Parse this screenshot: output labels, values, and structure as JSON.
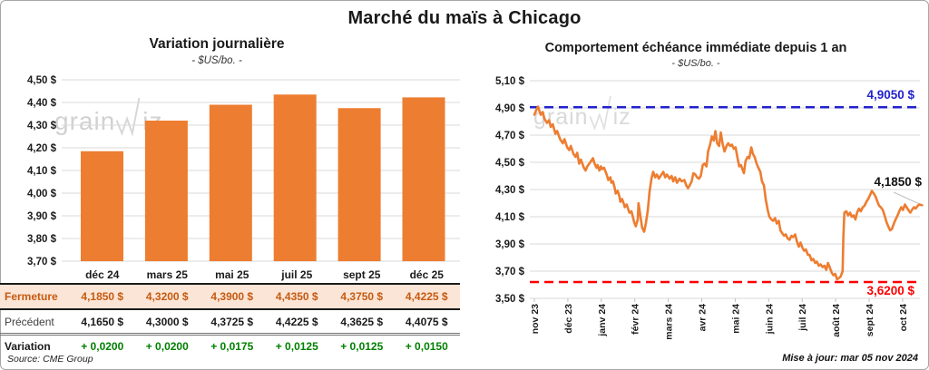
{
  "frame": {
    "title": "Marché du maïs à Chicago"
  },
  "watermark": {
    "part1": "grain",
    "part2": "iz"
  },
  "footer": {
    "source": "Source: CME Group",
    "updated": "Mise à jour: mar 05 nov 2024"
  },
  "colors": {
    "accent_orange": "#ED7D31",
    "table_highlight_bg": "#FBE5D6",
    "table_highlight_text": "#C55A11",
    "variation_green": "#008000",
    "ref_blue": "#2222CC",
    "ref_red": "#FF0000",
    "gridline": "#D9D9D9"
  },
  "table": {
    "columns": [
      "déc 24",
      "mars 25",
      "mai 25",
      "juil 25",
      "sept 25",
      "déc 25"
    ],
    "rows": [
      {
        "label": "Fermeture",
        "values": [
          "4,1850 $",
          "4,3200 $",
          "4,3900 $",
          "4,4350 $",
          "4,3750 $",
          "4,4225 $"
        ]
      },
      {
        "label": "Précédent",
        "values": [
          "4,1650 $",
          "4,3000 $",
          "4,3725 $",
          "4,4225 $",
          "4,3625 $",
          "4,4075 $"
        ]
      },
      {
        "label": "Variation",
        "values": [
          "+ 0,0200",
          "+ 0,0200",
          "+ 0,0175",
          "+ 0,0125",
          "+ 0,0125",
          "+ 0,0150"
        ]
      }
    ]
  },
  "chart_data": [
    {
      "type": "bar",
      "title": "Variation journalière",
      "subtitle": "- $US/bo. -",
      "categories": [
        "déc 24",
        "mars 25",
        "mai 25",
        "juil 25",
        "sept 25",
        "déc 25"
      ],
      "values": [
        4.185,
        4.32,
        4.39,
        4.435,
        4.375,
        4.4225
      ],
      "ylim": [
        3.7,
        4.5
      ],
      "ytick_step": 0.1,
      "bar_color": "#ED7D31",
      "grid": true
    },
    {
      "type": "line",
      "title": "Comportement échéance immédiate depuis 1 an",
      "subtitle": "- $US/bo. -",
      "x_ticks": [
        "nov 23",
        "déc 23",
        "janv 24",
        "févr 24",
        "mars 24",
        "avr 24",
        "mai 24",
        "juin 24",
        "juil 24",
        "août 24",
        "sept 24",
        "oct 24"
      ],
      "ylim": [
        3.5,
        5.1
      ],
      "ytick_step": 0.2,
      "line_color": "#ED7D31",
      "grid": true,
      "ref_lines": [
        {
          "value": 4.905,
          "label": "4,9050 $",
          "color": "#2222CC"
        },
        {
          "value": 3.62,
          "label": "3,6200 $",
          "color": "#FF0000"
        }
      ],
      "last_label": "4,1850 $",
      "series": [
        [
          0,
          4.85
        ],
        [
          0.05,
          4.88
        ],
        [
          0.11,
          4.91
        ],
        [
          0.19,
          4.85
        ],
        [
          0.25,
          4.87
        ],
        [
          0.3,
          4.82
        ],
        [
          0.38,
          4.79
        ],
        [
          0.44,
          4.81
        ],
        [
          0.49,
          4.76
        ],
        [
          0.55,
          4.78
        ],
        [
          0.63,
          4.71
        ],
        [
          0.68,
          4.73
        ],
        [
          0.77,
          4.67
        ],
        [
          0.85,
          4.64
        ],
        [
          0.9,
          4.67
        ],
        [
          0.98,
          4.61
        ],
        [
          1.04,
          4.59
        ],
        [
          1.09,
          4.62
        ],
        [
          1.17,
          4.56
        ],
        [
          1.23,
          4.54
        ],
        [
          1.28,
          4.57
        ],
        [
          1.34,
          4.49
        ],
        [
          1.39,
          4.52
        ],
        [
          1.48,
          4.46
        ],
        [
          1.53,
          4.44
        ],
        [
          1.58,
          4.47
        ],
        [
          1.67,
          4.5
        ],
        [
          1.75,
          4.53
        ],
        [
          1.8,
          4.49
        ],
        [
          1.86,
          4.46
        ],
        [
          1.89,
          4.48
        ],
        [
          1.94,
          4.44
        ],
        [
          1.99,
          4.47
        ],
        [
          2.02,
          4.45
        ],
        [
          2.08,
          4.46
        ],
        [
          2.13,
          4.43
        ],
        [
          2.16,
          4.41
        ],
        [
          2.21,
          4.37
        ],
        [
          2.27,
          4.39
        ],
        [
          2.3,
          4.35
        ],
        [
          2.35,
          4.36
        ],
        [
          2.4,
          4.31
        ],
        [
          2.43,
          4.27
        ],
        [
          2.49,
          4.29
        ],
        [
          2.54,
          4.25
        ],
        [
          2.57,
          4.21
        ],
        [
          2.62,
          4.23
        ],
        [
          2.68,
          4.19
        ],
        [
          2.7,
          4.17
        ],
        [
          2.76,
          4.19
        ],
        [
          2.81,
          4.15
        ],
        [
          2.84,
          4.13
        ],
        [
          2.9,
          4.14
        ],
        [
          2.95,
          4.09
        ],
        [
          2.98,
          4.06
        ],
        [
          3.03,
          4.03
        ],
        [
          3.09,
          4.08
        ],
        [
          3.11,
          4.2
        ],
        [
          3.17,
          4.1
        ],
        [
          3.22,
          4.02
        ],
        [
          3.28,
          3.99
        ],
        [
          3.33,
          4.05
        ],
        [
          3.39,
          4.15
        ],
        [
          3.44,
          4.28
        ],
        [
          3.5,
          4.38
        ],
        [
          3.55,
          4.43
        ],
        [
          3.61,
          4.39
        ],
        [
          3.66,
          4.41
        ],
        [
          3.72,
          4.38
        ],
        [
          3.77,
          4.4
        ],
        [
          3.85,
          4.43
        ],
        [
          3.91,
          4.39
        ],
        [
          3.96,
          4.41
        ],
        [
          4.04,
          4.38
        ],
        [
          4.1,
          4.4
        ],
        [
          4.15,
          4.36
        ],
        [
          4.21,
          4.39
        ],
        [
          4.26,
          4.35
        ],
        [
          4.34,
          4.38
        ],
        [
          4.4,
          4.36
        ],
        [
          4.48,
          4.37
        ],
        [
          4.54,
          4.33
        ],
        [
          4.59,
          4.31
        ],
        [
          4.64,
          4.33
        ],
        [
          4.7,
          4.36
        ],
        [
          4.75,
          4.42
        ],
        [
          4.81,
          4.41
        ],
        [
          4.86,
          4.39
        ],
        [
          4.92,
          4.38
        ],
        [
          4.97,
          4.4
        ],
        [
          5.03,
          4.48
        ],
        [
          5.08,
          4.49
        ],
        [
          5.14,
          4.47
        ],
        [
          5.19,
          4.58
        ],
        [
          5.25,
          4.63
        ],
        [
          5.3,
          4.69
        ],
        [
          5.36,
          4.66
        ],
        [
          5.41,
          4.73
        ],
        [
          5.46,
          4.64
        ],
        [
          5.52,
          4.62
        ],
        [
          5.57,
          4.72
        ],
        [
          5.63,
          4.63
        ],
        [
          5.68,
          4.58
        ],
        [
          5.74,
          4.62
        ],
        [
          5.79,
          4.64
        ],
        [
          5.85,
          4.62
        ],
        [
          5.9,
          4.63
        ],
        [
          5.96,
          4.6
        ],
        [
          6.01,
          4.61
        ],
        [
          6.07,
          4.53
        ],
        [
          6.12,
          4.47
        ],
        [
          6.17,
          4.48
        ],
        [
          6.23,
          4.44
        ],
        [
          6.26,
          4.42
        ],
        [
          6.31,
          4.51
        ],
        [
          6.37,
          4.54
        ],
        [
          6.42,
          4.53
        ],
        [
          6.48,
          4.61
        ],
        [
          6.53,
          4.56
        ],
        [
          6.58,
          4.54
        ],
        [
          6.64,
          4.49
        ],
        [
          6.69,
          4.46
        ],
        [
          6.75,
          4.43
        ],
        [
          6.8,
          4.36
        ],
        [
          6.86,
          4.33
        ],
        [
          6.91,
          4.23
        ],
        [
          6.97,
          4.15
        ],
        [
          7.02,
          4.1
        ],
        [
          7.08,
          4.08
        ],
        [
          7.13,
          4.07
        ],
        [
          7.19,
          4.09
        ],
        [
          7.24,
          4.05
        ],
        [
          7.3,
          4.07
        ],
        [
          7.35,
          4.0
        ],
        [
          7.4,
          3.98
        ],
        [
          7.46,
          3.96
        ],
        [
          7.51,
          3.97
        ],
        [
          7.57,
          3.94
        ],
        [
          7.62,
          3.93
        ],
        [
          7.68,
          3.96
        ],
        [
          7.73,
          3.95
        ],
        [
          7.79,
          3.97
        ],
        [
          7.84,
          3.92
        ],
        [
          7.9,
          3.88
        ],
        [
          7.95,
          3.91
        ],
        [
          8.01,
          3.87
        ],
        [
          8.06,
          3.85
        ],
        [
          8.11,
          3.86
        ],
        [
          8.17,
          3.82
        ],
        [
          8.22,
          3.82
        ],
        [
          8.28,
          3.78
        ],
        [
          8.33,
          3.79
        ],
        [
          8.39,
          3.76
        ],
        [
          8.44,
          3.77
        ],
        [
          8.5,
          3.74
        ],
        [
          8.55,
          3.75
        ],
        [
          8.61,
          3.73
        ],
        [
          8.66,
          3.74
        ],
        [
          8.72,
          3.71
        ],
        [
          8.77,
          3.76
        ],
        [
          8.82,
          3.73
        ],
        [
          8.88,
          3.69
        ],
        [
          8.93,
          3.67
        ],
        [
          8.99,
          3.68
        ],
        [
          9.04,
          3.64
        ],
        [
          9.1,
          3.65
        ],
        [
          9.15,
          3.66
        ],
        [
          9.21,
          3.7
        ],
        [
          9.23,
          3.95
        ],
        [
          9.26,
          4.13
        ],
        [
          9.32,
          4.14
        ],
        [
          9.37,
          4.11
        ],
        [
          9.43,
          4.13
        ],
        [
          9.48,
          4.1
        ],
        [
          9.54,
          4.11
        ],
        [
          9.59,
          4.08
        ],
        [
          9.64,
          4.13
        ],
        [
          9.7,
          4.16
        ],
        [
          9.75,
          4.14
        ],
        [
          9.81,
          4.17
        ],
        [
          9.86,
          4.18
        ],
        [
          9.92,
          4.21
        ],
        [
          9.97,
          4.23
        ],
        [
          10.03,
          4.26
        ],
        [
          10.08,
          4.29
        ],
        [
          10.14,
          4.27
        ],
        [
          10.19,
          4.25
        ],
        [
          10.25,
          4.21
        ],
        [
          10.3,
          4.18
        ],
        [
          10.35,
          4.17
        ],
        [
          10.41,
          4.15
        ],
        [
          10.46,
          4.11
        ],
        [
          10.52,
          4.06
        ],
        [
          10.57,
          4.03
        ],
        [
          10.63,
          4.0
        ],
        [
          10.68,
          4.01
        ],
        [
          10.74,
          4.05
        ],
        [
          10.79,
          4.08
        ],
        [
          10.85,
          4.11
        ],
        [
          10.9,
          4.14
        ],
        [
          10.96,
          4.17
        ],
        [
          11.01,
          4.15
        ],
        [
          11.07,
          4.19
        ],
        [
          11.12,
          4.17
        ],
        [
          11.17,
          4.15
        ],
        [
          11.23,
          4.13
        ],
        [
          11.28,
          4.15
        ],
        [
          11.34,
          4.17
        ],
        [
          11.39,
          4.16
        ],
        [
          11.45,
          4.18
        ],
        [
          11.5,
          4.19
        ],
        [
          11.58,
          4.185
        ]
      ]
    }
  ]
}
